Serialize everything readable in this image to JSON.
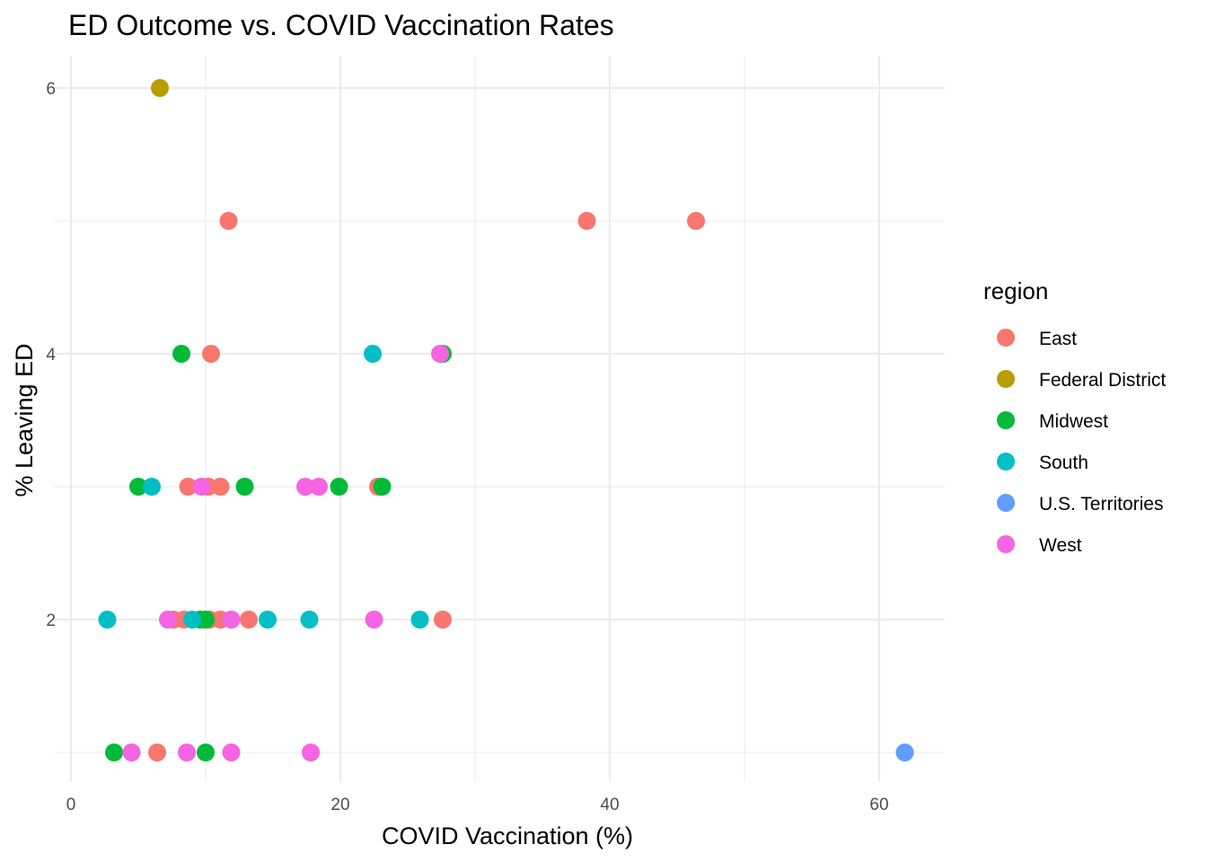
{
  "chart_data": {
    "type": "scatter",
    "title": "ED Outcome vs. COVID Vaccination Rates",
    "xlabel": "COVID Vaccination (%)",
    "ylabel": "% Leaving ED",
    "xlim": [
      0,
      65
    ],
    "ylim": [
      0.8,
      6.2
    ],
    "x_ticks": [
      0,
      20,
      40,
      60
    ],
    "y_ticks": [
      2,
      4,
      6
    ],
    "x_tick_labels": [
      "0",
      "20",
      "40",
      "60"
    ],
    "y_tick_labels": [
      "2",
      "4",
      "6"
    ],
    "grid": true,
    "legend": {
      "title": "region",
      "position": "right"
    },
    "series": [
      {
        "name": "East",
        "color": "#F8766D",
        "points": [
          {
            "x": 11.7,
            "y": 5
          },
          {
            "x": 38.3,
            "y": 5
          },
          {
            "x": 46.4,
            "y": 5
          },
          {
            "x": 10.4,
            "y": 4
          },
          {
            "x": 8.7,
            "y": 3
          },
          {
            "x": 10.2,
            "y": 3
          },
          {
            "x": 11.1,
            "y": 3
          },
          {
            "x": 22.8,
            "y": 3
          },
          {
            "x": 7.6,
            "y": 2
          },
          {
            "x": 8.4,
            "y": 2
          },
          {
            "x": 10.3,
            "y": 2
          },
          {
            "x": 11.1,
            "y": 2
          },
          {
            "x": 13.2,
            "y": 2
          },
          {
            "x": 27.6,
            "y": 2
          },
          {
            "x": 6.4,
            "y": 1
          }
        ]
      },
      {
        "name": "Federal District",
        "color": "#B79F00",
        "points": [
          {
            "x": 6.6,
            "y": 6
          }
        ]
      },
      {
        "name": "Midwest",
        "color": "#00BA38",
        "points": [
          {
            "x": 8.2,
            "y": 4
          },
          {
            "x": 27.6,
            "y": 4
          },
          {
            "x": 5.0,
            "y": 3
          },
          {
            "x": 12.9,
            "y": 3
          },
          {
            "x": 19.9,
            "y": 3
          },
          {
            "x": 23.1,
            "y": 3
          },
          {
            "x": 9.6,
            "y": 2
          },
          {
            "x": 10.0,
            "y": 2
          },
          {
            "x": 3.2,
            "y": 1
          },
          {
            "x": 10.0,
            "y": 1
          }
        ]
      },
      {
        "name": "South",
        "color": "#00BFC4",
        "points": [
          {
            "x": 22.4,
            "y": 4
          },
          {
            "x": 6.0,
            "y": 3
          },
          {
            "x": 2.7,
            "y": 2
          },
          {
            "x": 9.0,
            "y": 2
          },
          {
            "x": 14.6,
            "y": 2
          },
          {
            "x": 17.7,
            "y": 2
          },
          {
            "x": 25.9,
            "y": 2
          }
        ]
      },
      {
        "name": "U.S. Territories",
        "color": "#619CFF",
        "points": [
          {
            "x": 61.9,
            "y": 1
          }
        ]
      },
      {
        "name": "West",
        "color": "#F564E3",
        "points": [
          {
            "x": 27.4,
            "y": 4
          },
          {
            "x": 9.7,
            "y": 3
          },
          {
            "x": 17.4,
            "y": 3
          },
          {
            "x": 18.4,
            "y": 3
          },
          {
            "x": 7.2,
            "y": 2
          },
          {
            "x": 11.9,
            "y": 2
          },
          {
            "x": 22.5,
            "y": 2
          },
          {
            "x": 4.5,
            "y": 1
          },
          {
            "x": 8.6,
            "y": 1
          },
          {
            "x": 11.9,
            "y": 1
          },
          {
            "x": 17.8,
            "y": 1
          }
        ]
      }
    ]
  }
}
